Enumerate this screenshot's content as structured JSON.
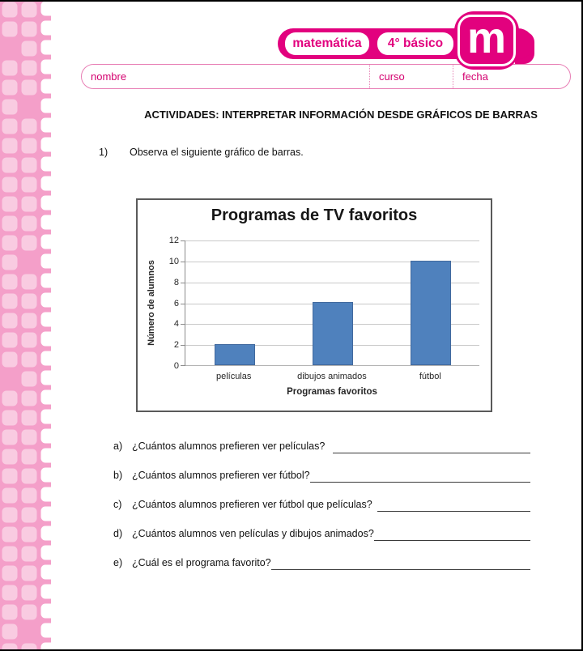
{
  "header": {
    "subject_badge": "matemática",
    "grade_badge": "4° básico",
    "logo_letter": "m"
  },
  "form": {
    "fields": [
      {
        "label": "nombre"
      },
      {
        "label": "curso"
      },
      {
        "label": "fecha"
      }
    ]
  },
  "worksheet": {
    "title": "ACTIVIDADES: INTERPRETAR INFORMACIÓN DESDE GRÁFICOS DE BARRAS",
    "item_number": "1)",
    "item_text": "Observa el siguiente gráfico de barras."
  },
  "chart_data": {
    "type": "bar",
    "title": "Programas de TV favoritos",
    "categories": [
      "películas",
      "dibujos animados",
      "fútbol"
    ],
    "values": [
      2,
      6,
      10
    ],
    "xlabel": "Programas favoritos",
    "ylabel": "Número de alumnos",
    "ylim": [
      0,
      12
    ],
    "yticks": [
      0,
      2,
      4,
      6,
      8,
      10,
      12
    ],
    "grid": true,
    "legend": "none",
    "bar_color": "#4F81BD"
  },
  "questions": [
    {
      "letter": "a)",
      "text": "¿Cuántos alumnos prefieren ver películas?"
    },
    {
      "letter": "b)",
      "text": "¿Cuántos alumnos prefieren ver fútbol?"
    },
    {
      "letter": "c)",
      "text": "¿Cuántos alumnos prefieren ver fútbol que películas?"
    },
    {
      "letter": "d)",
      "text": "¿Cuántos alumnos ven películas y dibujos animados?"
    },
    {
      "letter": "e)",
      "text": "¿Cuál es el programa favorito?"
    }
  ],
  "colors": {
    "magenta": "#E2017E",
    "sidebar_background": "#F49FC9",
    "sidebar_square": "#F9CBE1",
    "form_border_pink": "#E87FB5",
    "bar_blue": "#4F81BD",
    "chart_border_gray": "#5A5A5A"
  }
}
